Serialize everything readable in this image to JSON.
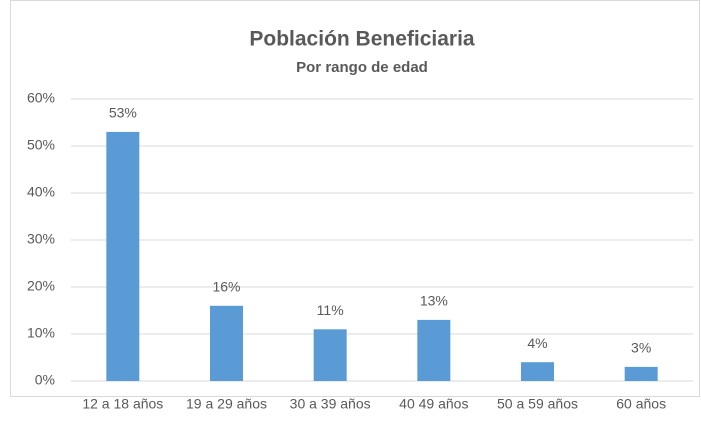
{
  "chart_data": {
    "type": "bar",
    "title": "Población Beneficiaria",
    "subtitle": "Por rango de edad",
    "categories": [
      "12 a 18 años",
      "19 a 29 años",
      "30 a 39 años",
      "40  49 años",
      "50 a 59 años",
      "60 años"
    ],
    "values": [
      53,
      16,
      11,
      13,
      4,
      3
    ],
    "value_labels": [
      "53%",
      "16%",
      "11%",
      "13%",
      "4%",
      "3%"
    ],
    "color": "#5b9bd5",
    "ylim": [
      0,
      60
    ],
    "yticks": [
      {
        "value": 0,
        "label": "0%"
      },
      {
        "value": 10,
        "label": "10%"
      },
      {
        "value": 20,
        "label": "20%"
      },
      {
        "value": 30,
        "label": "30%"
      },
      {
        "value": 40,
        "label": "40%"
      },
      {
        "value": 50,
        "label": "50%"
      },
      {
        "value": 60,
        "label": "60%"
      }
    ],
    "grid": true
  }
}
